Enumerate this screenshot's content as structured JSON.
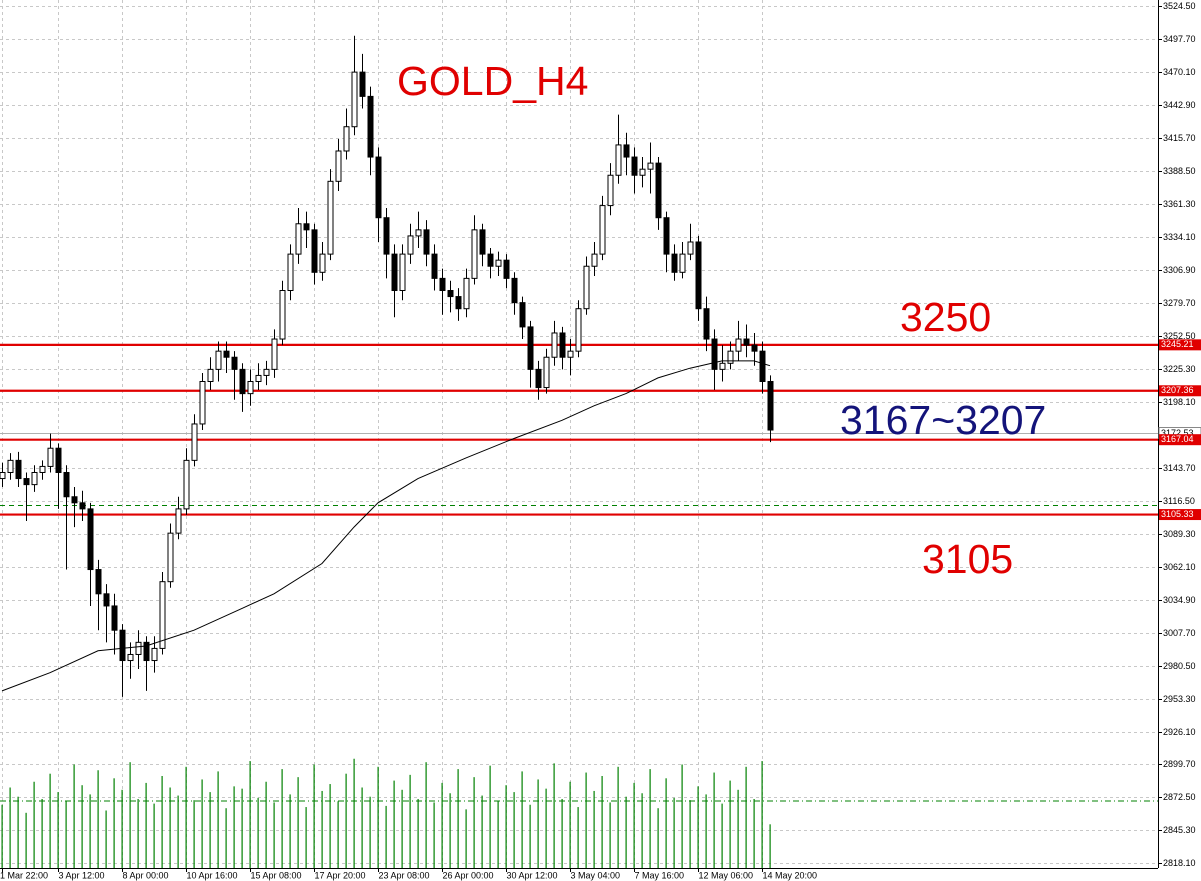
{
  "chart_data": {
    "type": "candlestick",
    "title": "GOLD_H4",
    "annotations": [
      {
        "text": "3250",
        "color": "#e00000"
      },
      {
        "text": "3167~3207",
        "color": "#14147a"
      },
      {
        "text": "3105",
        "color": "#e00000"
      }
    ],
    "categories": [
      "1 Mar 22:00",
      null,
      null,
      null,
      null,
      null,
      null,
      "3 Apr 12:00",
      null,
      null,
      null,
      null,
      null,
      null,
      null,
      "8 Apr 00:00",
      null,
      null,
      null,
      null,
      null,
      null,
      null,
      "10 Apr 16:00",
      null,
      null,
      null,
      null,
      null,
      null,
      null,
      "15 Apr 08:00",
      null,
      null,
      null,
      null,
      null,
      null,
      null,
      "17 Apr 20:00",
      null,
      null,
      null,
      null,
      null,
      null,
      null,
      "23 Apr 08:00",
      null,
      null,
      null,
      null,
      null,
      null,
      null,
      "26 Apr 00:00",
      null,
      null,
      null,
      null,
      null,
      null,
      null,
      "30 Apr 12:00",
      null,
      null,
      null,
      null,
      null,
      null,
      null,
      "3 May 04:00",
      null,
      null,
      null,
      null,
      null,
      null,
      null,
      "7 May 16:00",
      null,
      null,
      null,
      null,
      null,
      null,
      null,
      "12 May 06:00",
      null,
      null,
      null,
      null,
      null,
      null,
      null,
      "14 May 20:00",
      null
    ],
    "open": [
      3135,
      3140,
      3150,
      3135,
      3130,
      3140,
      3145,
      3160,
      3140,
      3120,
      3115,
      3110,
      3060,
      3040,
      3030,
      3010,
      2985,
      2990,
      3000,
      2985,
      2995,
      3050,
      3090,
      3110,
      3150,
      3180,
      3215,
      3225,
      3240,
      3235,
      3225,
      3205,
      3215,
      3220,
      3225,
      3250,
      3290,
      3320,
      3345,
      3340,
      3305,
      3320,
      3380,
      3405,
      3425,
      3470,
      3450,
      3400,
      3350,
      3320,
      3290,
      3320,
      3335,
      3340,
      3320,
      3300,
      3290,
      3285,
      3275,
      3300,
      3340,
      3320,
      3310,
      3315,
      3300,
      3280,
      3260,
      3225,
      3210,
      3235,
      3255,
      3235,
      3240,
      3275,
      3310,
      3320,
      3360,
      3385,
      3410,
      3400,
      3385,
      3390,
      3395,
      3350,
      3320,
      3305,
      3320,
      3330,
      3275,
      3250,
      3225,
      3230,
      3240,
      3250,
      3245,
      3240,
      3215
    ],
    "high": [
      3148,
      3156,
      3157,
      3140,
      3146,
      3150,
      3172,
      3164,
      3146,
      3128,
      3125,
      3115,
      3068,
      3048,
      3040,
      3015,
      3000,
      3010,
      3005,
      3005,
      3058,
      3098,
      3120,
      3160,
      3188,
      3222,
      3235,
      3248,
      3248,
      3240,
      3230,
      3225,
      3230,
      3232,
      3258,
      3298,
      3328,
      3358,
      3355,
      3345,
      3330,
      3390,
      3415,
      3440,
      3500,
      3485,
      3458,
      3408,
      3358,
      3328,
      3328,
      3345,
      3355,
      3348,
      3328,
      3308,
      3298,
      3292,
      3308,
      3352,
      3345,
      3325,
      3322,
      3320,
      3305,
      3285,
      3265,
      3232,
      3242,
      3265,
      3260,
      3250,
      3282,
      3318,
      3330,
      3368,
      3395,
      3435,
      3420,
      3408,
      3400,
      3412,
      3400,
      3355,
      3328,
      3330,
      3345,
      3335,
      3285,
      3258,
      3245,
      3248,
      3265,
      3262,
      3255,
      3248,
      3220
    ],
    "low": [
      3128,
      3134,
      3128,
      3100,
      3124,
      3134,
      3140,
      3110,
      3060,
      3095,
      3100,
      3030,
      3010,
      3000,
      2990,
      2955,
      2970,
      2978,
      2960,
      2975,
      2990,
      3045,
      3085,
      3105,
      3145,
      3175,
      3208,
      3215,
      3222,
      3200,
      3190,
      3195,
      3208,
      3212,
      3218,
      3245,
      3282,
      3312,
      3325,
      3295,
      3298,
      3315,
      3372,
      3398,
      3418,
      3440,
      3385,
      3330,
      3300,
      3268,
      3282,
      3312,
      3325,
      3310,
      3290,
      3270,
      3272,
      3265,
      3268,
      3295,
      3310,
      3300,
      3302,
      3292,
      3270,
      3250,
      3210,
      3200,
      3205,
      3228,
      3225,
      3220,
      3235,
      3270,
      3302,
      3315,
      3352,
      3378,
      3385,
      3370,
      3375,
      3370,
      3340,
      3305,
      3298,
      3300,
      3315,
      3265,
      3240,
      3208,
      3215,
      3225,
      3232,
      3235,
      3228,
      3205,
      3165
    ],
    "close": [
      3140,
      3150,
      3135,
      3130,
      3140,
      3145,
      3160,
      3140,
      3120,
      3115,
      3110,
      3060,
      3040,
      3030,
      3010,
      2985,
      2990,
      3000,
      2985,
      2995,
      3050,
      3090,
      3110,
      3150,
      3180,
      3215,
      3225,
      3240,
      3235,
      3225,
      3205,
      3215,
      3220,
      3225,
      3250,
      3290,
      3320,
      3345,
      3340,
      3305,
      3320,
      3380,
      3405,
      3425,
      3470,
      3450,
      3400,
      3350,
      3320,
      3290,
      3320,
      3335,
      3340,
      3320,
      3300,
      3290,
      3285,
      3275,
      3300,
      3340,
      3320,
      3310,
      3315,
      3300,
      3280,
      3260,
      3225,
      3210,
      3235,
      3255,
      3235,
      3240,
      3275,
      3310,
      3320,
      3360,
      3385,
      3410,
      3400,
      3385,
      3390,
      3395,
      3350,
      3320,
      3305,
      3320,
      3330,
      3275,
      3250,
      3225,
      3230,
      3240,
      3250,
      3245,
      3240,
      3215,
      3175
    ],
    "ma": {
      "color": "#000000",
      "x": [
        0,
        6,
        12,
        18,
        24,
        30,
        34,
        40,
        44,
        47,
        52,
        58,
        64,
        70,
        74,
        78,
        82,
        86,
        90,
        94,
        96
      ],
      "values": [
        2960,
        2975,
        2993,
        2997,
        3010,
        3028,
        3040,
        3065,
        3095,
        3115,
        3135,
        3152,
        3168,
        3183,
        3195,
        3205,
        3218,
        3226,
        3232,
        3232,
        3228
      ]
    },
    "volume": {
      "color": "#008000",
      "ylim": [
        0,
        100
      ],
      "values": [
        55,
        70,
        62,
        48,
        75,
        60,
        82,
        66,
        58,
        90,
        72,
        64,
        85,
        50,
        78,
        68,
        92,
        60,
        74,
        56,
        80,
        70,
        63,
        88,
        59,
        77,
        66,
        84,
        52,
        71,
        69,
        93,
        61,
        75,
        57,
        86,
        64,
        79,
        53,
        90,
        67,
        73,
        58,
        82,
        95,
        70,
        62,
        88,
        54,
        76,
        68,
        81,
        60,
        92,
        57,
        74,
        65,
        86,
        51,
        79,
        63,
        89,
        58,
        72,
        66,
        84,
        55,
        77,
        69,
        91,
        60,
        75,
        53,
        83,
        67,
        80,
        57,
        88,
        62,
        74,
        65,
        86,
        52,
        78,
        61,
        90,
        59,
        71,
        64,
        83,
        56,
        76,
        68,
        88,
        60,
        93,
        38
      ]
    },
    "levels": [
      3245.21,
      3207.36,
      3167.04,
      3105.33
    ],
    "level_color": "#e00000",
    "current_price": 3172.53,
    "dashed_levels": [
      3112.8
    ],
    "ylim": [
      2814,
      3529.45
    ],
    "yticks": [
      {
        "value": 3524.5,
        "label": "3524.50"
      },
      {
        "value": 3497.7,
        "label": "3497.70"
      },
      {
        "value": 3470.1,
        "label": "3470.10"
      },
      {
        "value": 3442.9,
        "label": "3442.90"
      },
      {
        "value": 3415.7,
        "label": "3415.70"
      },
      {
        "value": 3388.5,
        "label": "3388.50"
      },
      {
        "value": 3361.3,
        "label": "3361.30"
      },
      {
        "value": 3334.1,
        "label": "3334.10"
      },
      {
        "value": 3306.9,
        "label": "3306.90"
      },
      {
        "value": 3279.7,
        "label": "3279.70"
      },
      {
        "value": 3252.5,
        "label": "3252.50"
      },
      {
        "value": 3225.3,
        "label": "3225.30"
      },
      {
        "value": 3198.1,
        "label": "3198.10"
      },
      {
        "value": 3143.7,
        "label": "3143.70"
      },
      {
        "value": 3116.5,
        "label": "3116.50"
      },
      {
        "value": 3089.3,
        "label": "3089.30"
      },
      {
        "value": 3062.1,
        "label": "3062.10"
      },
      {
        "value": 3034.9,
        "label": "3034.90"
      },
      {
        "value": 3007.7,
        "label": "3007.70"
      },
      {
        "value": 2980.5,
        "label": "2980.50"
      },
      {
        "value": 2953.3,
        "label": "2953.30"
      },
      {
        "value": 2926.1,
        "label": "2926.10"
      },
      {
        "value": 2899.7,
        "label": "2899.70"
      },
      {
        "value": 2872.5,
        "label": "2872.50"
      },
      {
        "value": 2845.3,
        "label": "2845.30"
      },
      {
        "value": 2818.1,
        "label": "2818.10"
      }
    ],
    "grid": true
  }
}
